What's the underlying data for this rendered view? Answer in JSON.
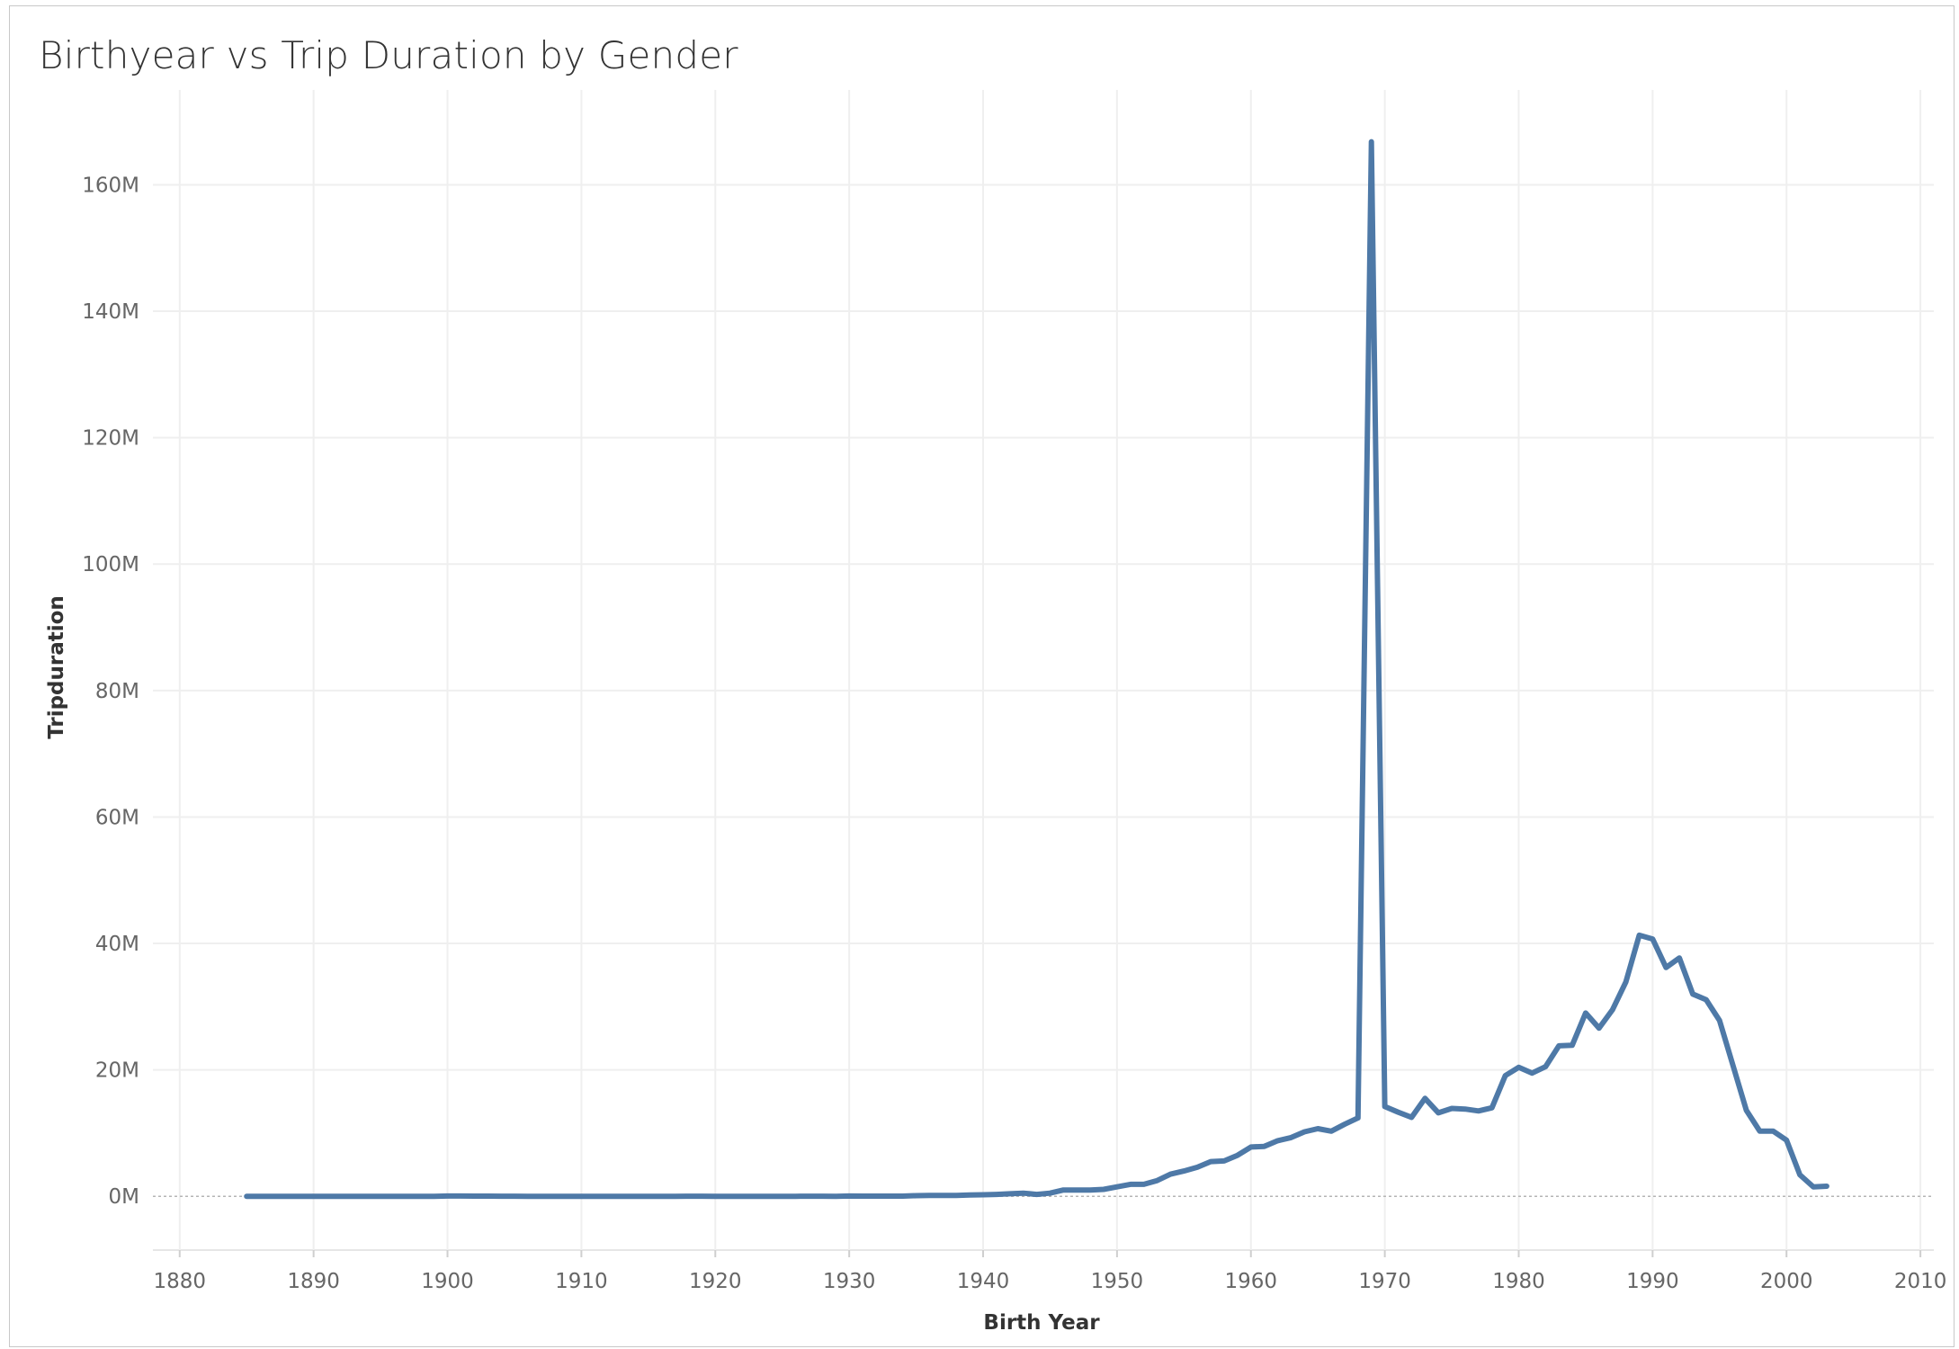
{
  "title": "Birthyear vs Trip Duration by Gender",
  "chart_data": {
    "type": "line",
    "title": "Birthyear vs Trip Duration by Gender",
    "xlabel": "Birth Year",
    "ylabel": "Tripduration",
    "xlim": [
      1878,
      2011
    ],
    "ylim": [
      -8500000,
      175000000
    ],
    "x_ticks": [
      1880,
      1890,
      1900,
      1910,
      1920,
      1930,
      1940,
      1950,
      1960,
      1970,
      1980,
      1990,
      2000,
      2010
    ],
    "x_tick_labels": [
      "1880",
      "1890",
      "1900",
      "1910",
      "1920",
      "1930",
      "1940",
      "1950",
      "1960",
      "1970",
      "1980",
      "1990",
      "2000",
      "2010"
    ],
    "y_ticks": [
      0,
      20000000,
      40000000,
      60000000,
      80000000,
      100000000,
      120000000,
      140000000,
      160000000
    ],
    "y_tick_labels": [
      "0M",
      "20M",
      "40M",
      "60M",
      "80M",
      "100M",
      "120M",
      "140M",
      "160M"
    ],
    "grid": true,
    "zero_line": true,
    "line_color": "#4e79a7",
    "x": [
      1885,
      1886,
      1887,
      1888,
      1889,
      1890,
      1891,
      1892,
      1893,
      1894,
      1895,
      1896,
      1897,
      1898,
      1899,
      1900,
      1901,
      1902,
      1903,
      1904,
      1905,
      1906,
      1907,
      1908,
      1909,
      1910,
      1911,
      1912,
      1913,
      1914,
      1915,
      1916,
      1917,
      1918,
      1919,
      1920,
      1921,
      1922,
      1923,
      1924,
      1925,
      1926,
      1927,
      1928,
      1929,
      1930,
      1931,
      1932,
      1933,
      1934,
      1935,
      1936,
      1937,
      1938,
      1939,
      1940,
      1941,
      1942,
      1943,
      1944,
      1945,
      1946,
      1947,
      1948,
      1949,
      1950,
      1951,
      1952,
      1953,
      1954,
      1955,
      1956,
      1957,
      1958,
      1959,
      1960,
      1961,
      1962,
      1963,
      1964,
      1965,
      1966,
      1967,
      1968,
      1969,
      1970,
      1971,
      1972,
      1973,
      1974,
      1975,
      1976,
      1977,
      1978,
      1979,
      1980,
      1981,
      1982,
      1983,
      1984,
      1985,
      1986,
      1987,
      1988,
      1989,
      1990,
      1991,
      1992,
      1993,
      1994,
      1995,
      1996,
      1997,
      1998,
      1999,
      2000,
      2001,
      2002,
      2003
    ],
    "values": [
      0,
      0,
      10000,
      10000,
      10000,
      10000,
      0,
      0,
      0,
      0,
      10000,
      10000,
      10000,
      10000,
      10000,
      50000,
      50000,
      30000,
      30000,
      20000,
      20000,
      10000,
      10000,
      10000,
      10000,
      10000,
      10000,
      10000,
      10000,
      10000,
      10000,
      10000,
      10000,
      20000,
      20000,
      10000,
      10000,
      10000,
      10000,
      10000,
      10000,
      10000,
      20000,
      20000,
      10000,
      50000,
      40000,
      30000,
      30000,
      30000,
      100000,
      150000,
      150000,
      150000,
      200000,
      250000,
      300000,
      400000,
      500000,
      300000,
      500000,
      1000000,
      1000000,
      1000000,
      1100000,
      1500000,
      1900000,
      1900000,
      2500000,
      3500000,
      4000000,
      4600000,
      5500000,
      5600000,
      6500000,
      7800000,
      7900000,
      8800000,
      9300000,
      10200000,
      10700000,
      10300000,
      11400000,
      12400000,
      166800000,
      14200000,
      13300000,
      12500000,
      15500000,
      13200000,
      13900000,
      13800000,
      13500000,
      14000000,
      19100000,
      20400000,
      19500000,
      20500000,
      23800000,
      23900000,
      29000000,
      26600000,
      29500000,
      33900000,
      41300000,
      40700000,
      36200000,
      37700000,
      32000000,
      31100000,
      27800000,
      20700000,
      13600000,
      10300000,
      10300000,
      8900000,
      3400000,
      1500000,
      1600000
    ]
  }
}
